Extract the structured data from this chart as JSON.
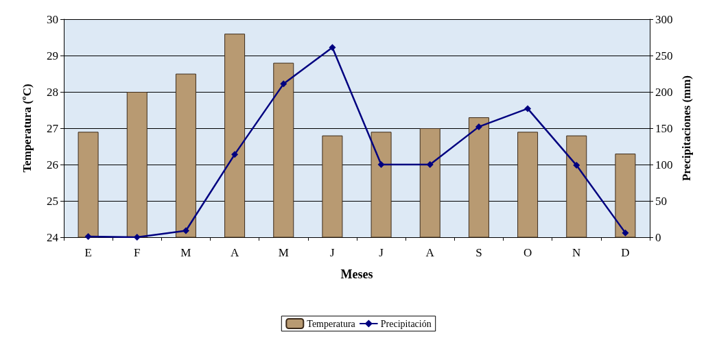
{
  "chart_data": {
    "type": "bar",
    "xlabel": "Meses",
    "ylabel": "Temperatura (ºC)",
    "y2label": "Precipitaciones (mm)",
    "categories": [
      "E",
      "F",
      "M",
      "A",
      "M",
      "J",
      "J",
      "A",
      "S",
      "O",
      "N",
      "D"
    ],
    "series": [
      {
        "name": "Temperatura",
        "color": "#b89a72",
        "values": [
          26.9,
          28.0,
          28.5,
          29.6,
          28.8,
          26.8,
          26.9,
          27.0,
          27.3,
          26.9,
          26.8,
          26.3
        ]
      },
      {
        "name": "Precipitación",
        "type": "line",
        "axis": "y2",
        "color": "#000080",
        "values": [
          1,
          0,
          9,
          114,
          211,
          261,
          100,
          100,
          152,
          177,
          99,
          6
        ]
      }
    ],
    "ylim": [
      24,
      30
    ],
    "yticks": [
      24,
      25,
      26,
      27,
      28,
      29,
      30
    ],
    "y2lim": [
      0,
      300
    ],
    "y2ticks": [
      0,
      50,
      100,
      150,
      200,
      250,
      300
    ],
    "grid": "y",
    "legend": "bottom",
    "marker": "diamond",
    "line_style": "solid"
  }
}
